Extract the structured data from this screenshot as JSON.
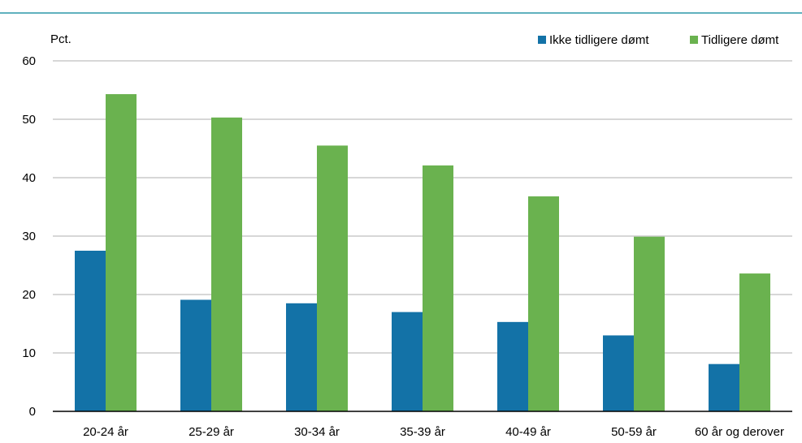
{
  "chart_data": {
    "type": "bar",
    "title": "",
    "ylabel": "Pct.",
    "xlabel": "",
    "ylim": [
      0,
      60
    ],
    "yticks": [
      0,
      10,
      20,
      30,
      40,
      50,
      60
    ],
    "grid": true,
    "legend_position": "top-right",
    "categories": [
      "20-24 år",
      "25-29 år",
      "30-34 år",
      "35-39 år",
      "40-49 år",
      "50-59 år",
      "60 år og derover"
    ],
    "series": [
      {
        "name": "Ikke tidligere dømt",
        "color": "#1372a7",
        "values": [
          27.5,
          19.1,
          18.5,
          17.0,
          15.3,
          13.0,
          8.1
        ]
      },
      {
        "name": "Tidligere dømt",
        "color": "#6ab24f",
        "values": [
          54.3,
          50.3,
          45.5,
          42.1,
          36.8,
          29.9,
          23.6
        ]
      }
    ]
  },
  "colors": {
    "top_rule": "#2a97a8",
    "gridline": "#bfbfbf",
    "axis": "#000000"
  }
}
